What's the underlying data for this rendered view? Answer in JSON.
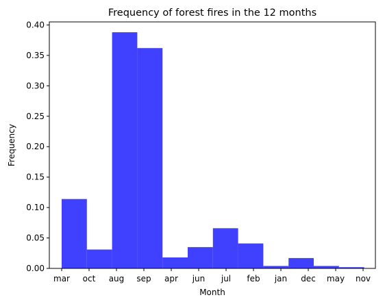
{
  "chart_data": {
    "type": "bar",
    "title": "Frequency of forest fires in the 12 months",
    "xlabel": "Month",
    "ylabel": "Frequency",
    "categories": [
      "mar",
      "oct",
      "aug",
      "sep",
      "apr",
      "jun",
      "jul",
      "feb",
      "jan",
      "dec",
      "may",
      "nov"
    ],
    "values": [
      0.114,
      0.031,
      0.388,
      0.362,
      0.018,
      0.035,
      0.066,
      0.041,
      0.004,
      0.017,
      0.004,
      0.002
    ],
    "ylim": [
      0,
      0.405
    ],
    "yticks": [
      "0.00",
      "0.05",
      "0.10",
      "0.15",
      "0.20",
      "0.25",
      "0.30",
      "0.35",
      "0.40"
    ],
    "grid": false,
    "bar_color": "#4040ff"
  }
}
